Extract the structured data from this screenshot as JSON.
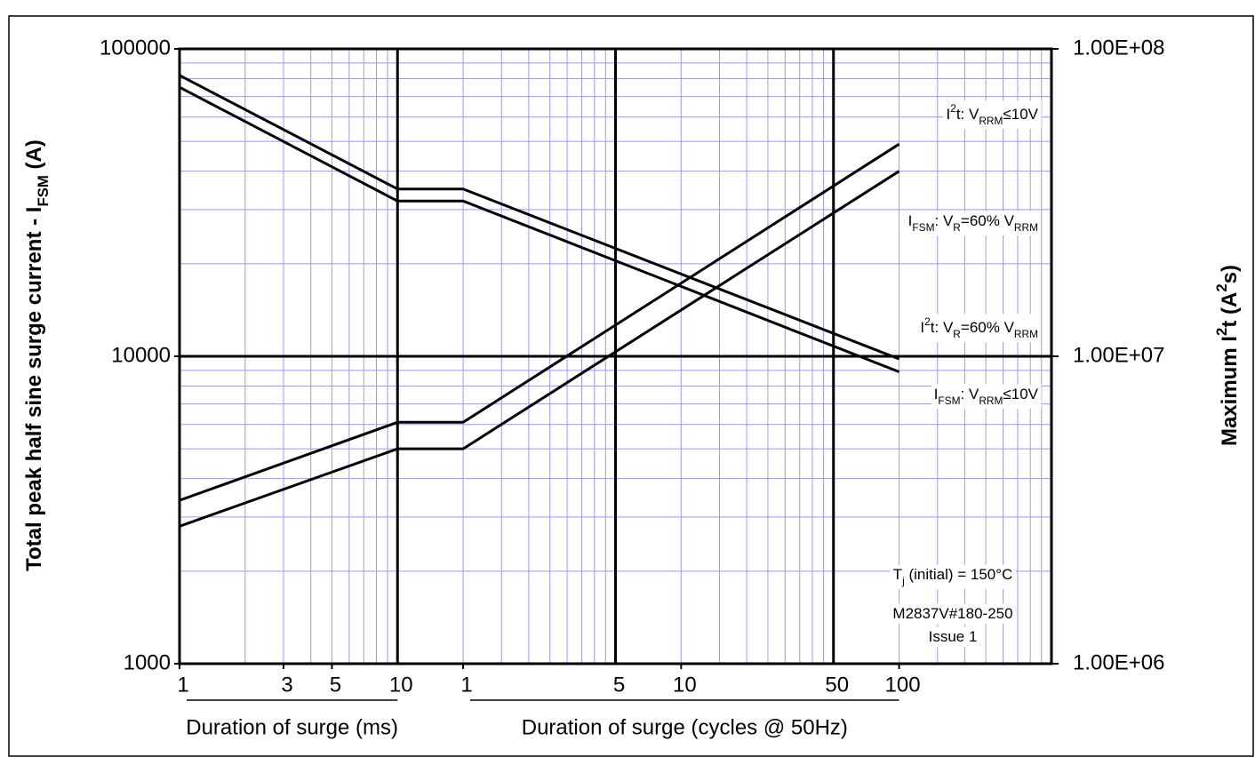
{
  "chart_data": {
    "type": "line",
    "log_x": true,
    "log_y": true,
    "grid": true,
    "ylabel": [
      {
        "text": "Total peak half sine surge current - I"
      },
      {
        "text": "FSM",
        "sub": true
      },
      {
        "text": " (A)"
      }
    ],
    "y2label": [
      {
        "text": "Maximum I"
      },
      {
        "text": "2",
        "sup": true
      },
      {
        "text": "t (A"
      },
      {
        "text": "2",
        "sup": true
      },
      {
        "text": "s)"
      }
    ],
    "xlabel": [
      "Duration of surge (ms)",
      "Duration of surge (cycles @ 50Hz)"
    ],
    "x": [
      1,
      10,
      20,
      2000
    ],
    "xlim": [
      1,
      10000
    ],
    "xticks": [
      1,
      3,
      5,
      10,
      {
        "value": 20,
        "label": "1"
      },
      {
        "value": 100,
        "label": "5"
      },
      {
        "value": 200,
        "label": "10"
      },
      {
        "value": 1000,
        "label": "50"
      },
      {
        "value": 2000,
        "label": "100"
      }
    ],
    "ylim": [
      1000,
      100000
    ],
    "yticks": [
      1000,
      10000,
      100000
    ],
    "y2lim": [
      1000000,
      100000000
    ],
    "y2ticks": [
      {
        "value": 1000000,
        "label": "1.00E+06"
      },
      {
        "value": 10000000,
        "label": "1.00E+07"
      },
      {
        "value": 100000000,
        "label": "1.00E+08"
      }
    ],
    "series": [
      {
        "label": [
          {
            "text": "I"
          },
          {
            "text": "FSM",
            "sub": true
          },
          {
            "text": ": V"
          },
          {
            "text": "RRM",
            "sub": true
          },
          {
            "text": "≤10V"
          }
        ],
        "color": "#000000",
        "values": [
          82000,
          35000,
          35000,
          9800
        ]
      },
      {
        "label": [
          {
            "text": "I"
          },
          {
            "text": "FSM",
            "sub": true
          },
          {
            "text": ": V"
          },
          {
            "text": "R",
            "sub": true
          },
          {
            "text": "=60% V"
          },
          {
            "text": "RRM",
            "sub": true
          }
        ],
        "color": "#000000",
        "values": [
          75000,
          32000,
          32000,
          8900
        ]
      },
      {
        "label": [
          {
            "text": "I"
          },
          {
            "text": "2",
            "sup": true
          },
          {
            "text": "t: V"
          },
          {
            "text": "RRM",
            "sub": true
          },
          {
            "text": "≤10V"
          }
        ],
        "color": "#000000",
        "axis": "y2",
        "values": [
          3400000,
          6100000,
          6100000,
          49000000
        ]
      },
      {
        "label": [
          {
            "text": "I"
          },
          {
            "text": "2",
            "sup": true
          },
          {
            "text": "t: V"
          },
          {
            "text": "R",
            "sub": true
          },
          {
            "text": "=60% V"
          },
          {
            "text": "RRM",
            "sub": true
          }
        ],
        "color": "#000000",
        "axis": "y2",
        "values": [
          2800000,
          5000000,
          5000000,
          40000000
        ]
      }
    ],
    "annotations": [
      [
        {
          "text": "T"
        },
        {
          "text": "j",
          "sub": true
        },
        {
          "text": " (initial) = 150°C"
        }
      ],
      [
        {
          "text": "M2837V#180-250"
        }
      ],
      [
        {
          "text": "Issue 1"
        }
      ]
    ]
  }
}
